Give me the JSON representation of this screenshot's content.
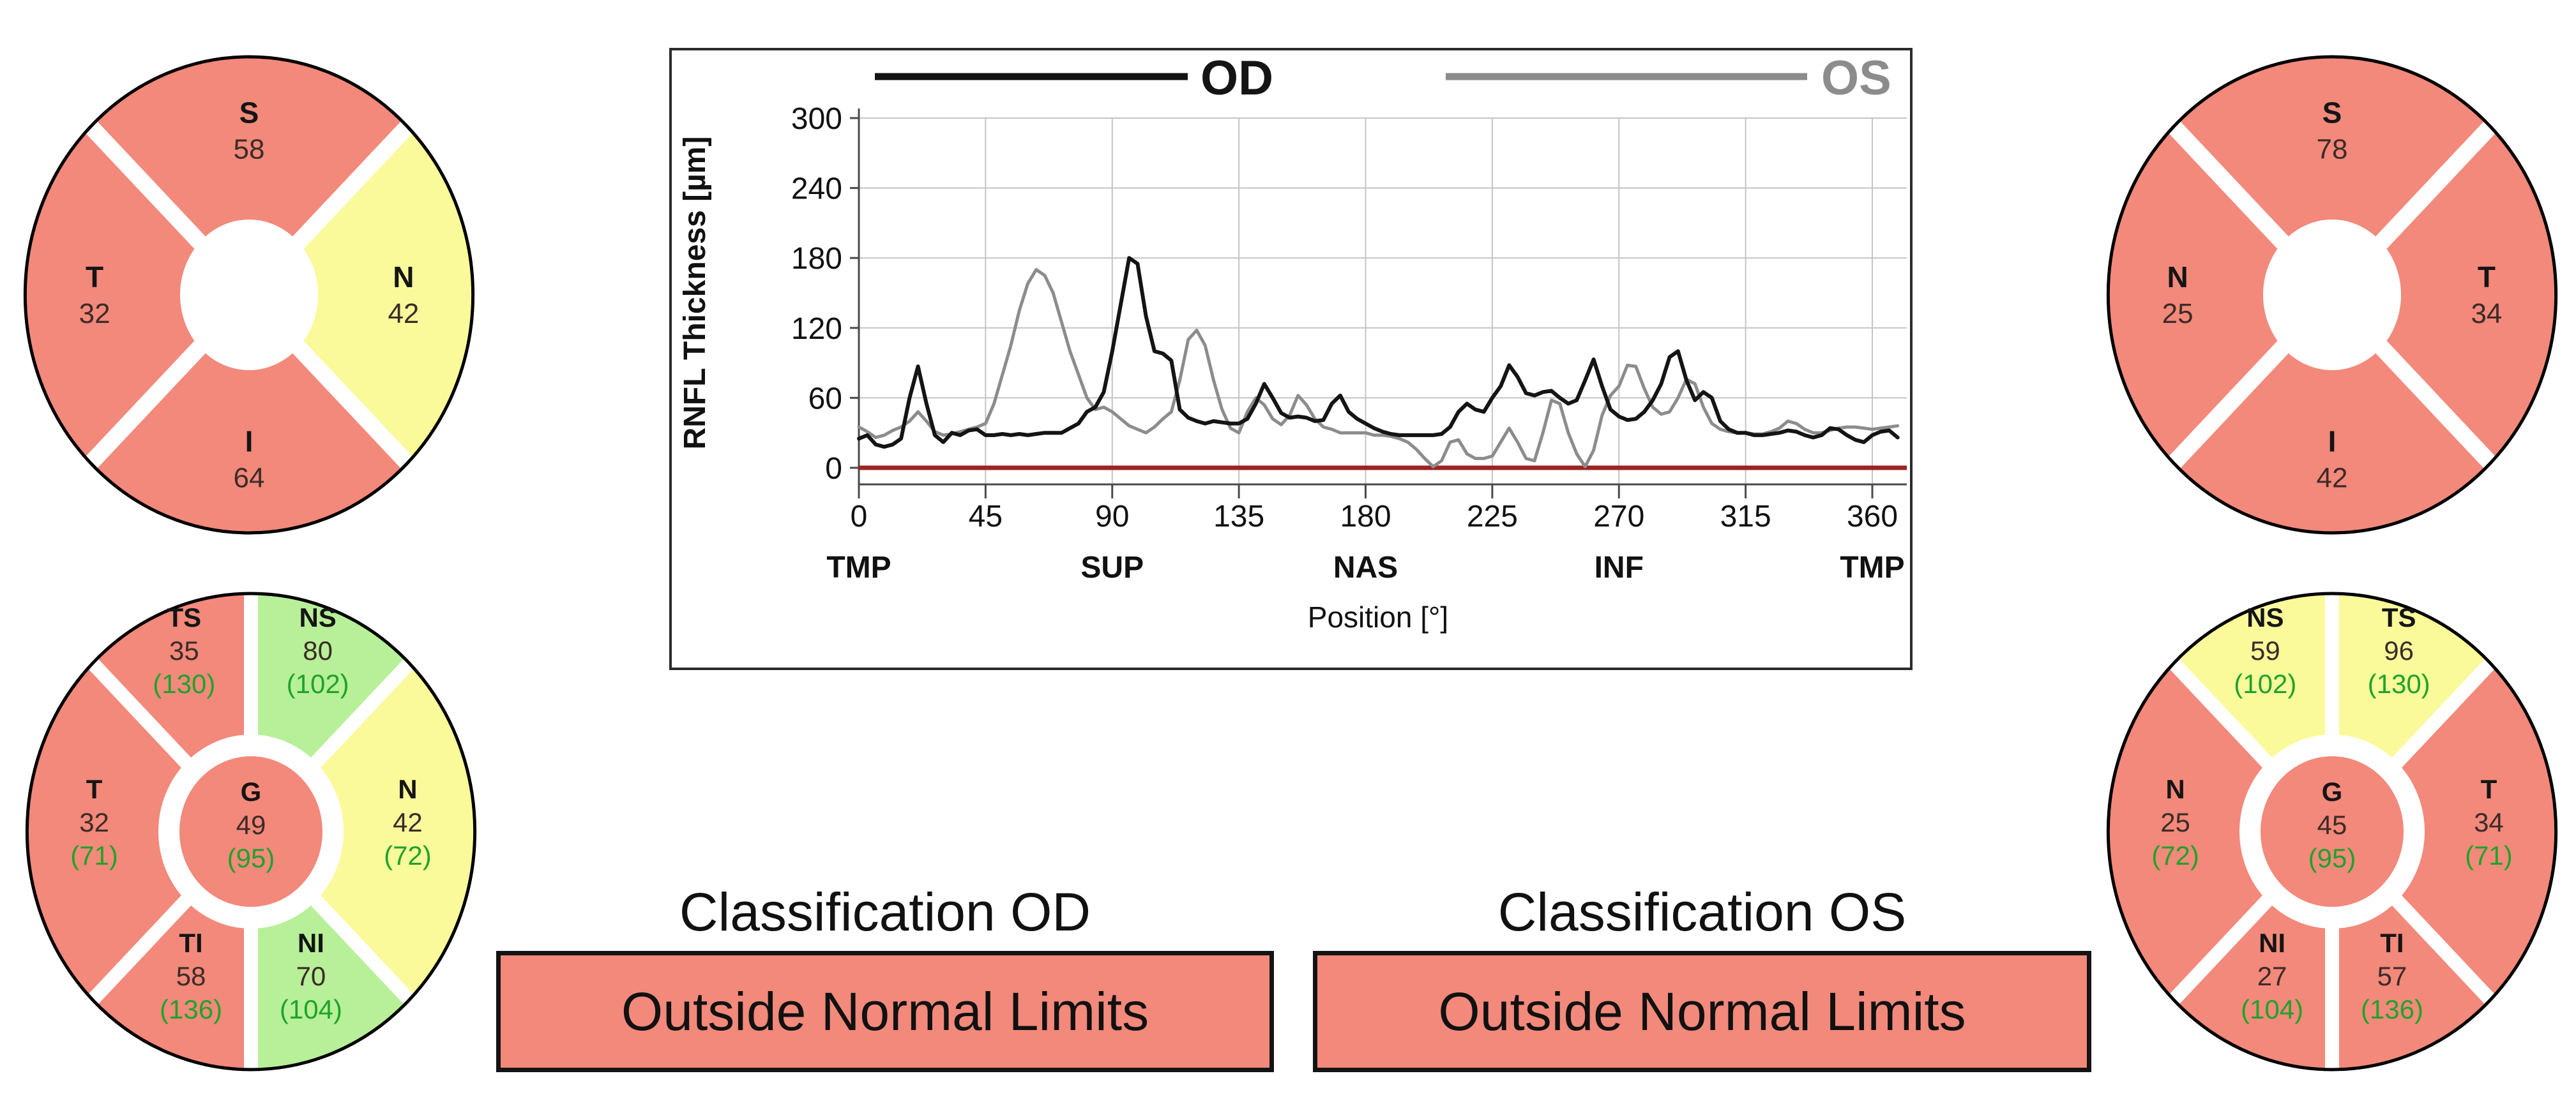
{
  "palette": {
    "red": "#F2897B",
    "yellow": "#FAFA9B",
    "green": "#B7F098",
    "green_text": "#1FA32A",
    "label_text": "#151515",
    "value_text": "#3D2B28",
    "outline": "#000000",
    "grid": "#C4C4C4",
    "axis": "#4A4A4A",
    "frame": "#2B2B2B",
    "zero_line": "#9B2423",
    "od_curve": "#141414",
    "os_curve": "#8C8C8C"
  },
  "classifications": [
    {
      "heading": "Classification OD",
      "result": "Outside Normal Limits",
      "status": "red"
    },
    {
      "heading": "Classification OS",
      "result": "Outside Normal Limits",
      "status": "red"
    }
  ],
  "chart_data": [
    {
      "id": "rnfl_profile",
      "type": "line",
      "title": "",
      "xlabel": "Position [°]",
      "ylabel": "RNFL Thickness [µm]",
      "xlim": [
        0,
        370
      ],
      "ylim": [
        0,
        300
      ],
      "grid": true,
      "x_ticks": [
        0,
        45,
        90,
        135,
        180,
        225,
        270,
        315,
        360
      ],
      "y_ticks": [
        0,
        60,
        120,
        180,
        240,
        300
      ],
      "region_labels": [
        {
          "label": "TMP",
          "deg": 0
        },
        {
          "label": "SUP",
          "deg": 90
        },
        {
          "label": "NAS",
          "deg": 180
        },
        {
          "label": "INF",
          "deg": 270
        },
        {
          "label": "TMP",
          "deg": 360
        }
      ],
      "legend": [
        {
          "name": "OD",
          "color": "#141414"
        },
        {
          "name": "OS",
          "color": "#8C8C8C"
        }
      ],
      "baseline": {
        "value": 0,
        "color": "#9B2423"
      },
      "x_start": 0,
      "x_step": 3,
      "series": [
        {
          "name": "OD",
          "values": [
            25,
            28,
            20,
            18,
            20,
            25,
            60,
            87,
            55,
            28,
            22,
            30,
            28,
            32,
            33,
            28,
            28,
            29,
            28,
            29,
            28,
            29,
            30,
            30,
            30,
            34,
            38,
            48,
            52,
            65,
            100,
            140,
            180,
            175,
            130,
            100,
            98,
            92,
            50,
            43,
            40,
            38,
            40,
            39,
            38,
            38,
            42,
            55,
            72,
            60,
            47,
            43,
            44,
            43,
            40,
            41,
            55,
            62,
            48,
            42,
            38,
            34,
            31,
            29,
            28,
            28,
            28,
            28,
            28,
            29,
            35,
            48,
            55,
            50,
            48,
            60,
            70,
            88,
            78,
            64,
            62,
            65,
            66,
            60,
            55,
            58,
            75,
            93,
            70,
            50,
            44,
            41,
            42,
            48,
            58,
            72,
            95,
            100,
            75,
            58,
            65,
            60,
            40,
            33,
            30,
            30,
            28,
            28,
            29,
            30,
            32,
            31,
            28,
            26,
            28,
            34,
            33,
            28,
            24,
            22,
            28,
            31,
            32,
            26
          ]
        },
        {
          "name": "OS",
          "values": [
            35,
            31,
            26,
            28,
            32,
            35,
            40,
            48,
            40,
            31,
            28,
            29,
            31,
            33,
            35,
            38,
            55,
            80,
            105,
            135,
            158,
            170,
            165,
            150,
            125,
            100,
            80,
            60,
            50,
            52,
            48,
            42,
            36,
            33,
            30,
            35,
            42,
            48,
            75,
            110,
            118,
            105,
            75,
            50,
            34,
            30,
            48,
            60,
            54,
            42,
            37,
            45,
            62,
            54,
            42,
            35,
            33,
            30,
            30,
            30,
            30,
            28,
            28,
            27,
            25,
            22,
            16,
            8,
            1,
            6,
            22,
            24,
            12,
            8,
            8,
            10,
            22,
            34,
            22,
            8,
            6,
            30,
            58,
            55,
            30,
            12,
            1,
            15,
            45,
            62,
            70,
            88,
            87,
            68,
            52,
            46,
            48,
            60,
            76,
            72,
            52,
            38,
            33,
            31,
            30,
            30,
            29,
            29,
            31,
            34,
            40,
            38,
            33,
            30,
            30,
            32,
            34,
            35,
            35,
            34,
            33,
            34,
            35,
            36
          ]
        }
      ]
    },
    {
      "id": "od_quadrants",
      "type": "pie",
      "variant": "quadrant",
      "eye": "OD",
      "cx": 390,
      "cy": 462,
      "sectors": [
        {
          "label": "S",
          "value": "58",
          "status": "red",
          "start": 45,
          "end": 135
        },
        {
          "label": "N",
          "value": "42",
          "status": "yellow",
          "start": -45,
          "end": 45
        },
        {
          "label": "I",
          "value": "64",
          "status": "red",
          "start": 225,
          "end": 315
        },
        {
          "label": "T",
          "value": "32",
          "status": "red",
          "start": 135,
          "end": 225
        }
      ]
    },
    {
      "id": "os_quadrants",
      "type": "pie",
      "variant": "quadrant",
      "eye": "OS",
      "cx": 3652,
      "cy": 462,
      "sectors": [
        {
          "label": "S",
          "value": "78",
          "status": "red",
          "start": 45,
          "end": 135
        },
        {
          "label": "T",
          "value": "34",
          "status": "red",
          "start": -45,
          "end": 45
        },
        {
          "label": "I",
          "value": "42",
          "status": "red",
          "start": 225,
          "end": 315
        },
        {
          "label": "N",
          "value": "25",
          "status": "red",
          "start": 135,
          "end": 225
        }
      ]
    },
    {
      "id": "od_sectors",
      "type": "pie",
      "variant": "garway-heath",
      "eye": "OD",
      "cx": 393,
      "cy": 1303,
      "center": {
        "label": "G",
        "value": "49",
        "norm": "(95)",
        "status": "red"
      },
      "sectors": [
        {
          "label": "TS",
          "value": "35",
          "norm": "(130)",
          "status": "red",
          "start": 90,
          "end": 135
        },
        {
          "label": "NS",
          "value": "80",
          "norm": "(102)",
          "status": "green",
          "start": 45,
          "end": 90
        },
        {
          "label": "N",
          "value": "42",
          "norm": "(72)",
          "status": "yellow",
          "start": -45,
          "end": 45
        },
        {
          "label": "NI",
          "value": "70",
          "norm": "(104)",
          "status": "green",
          "start": 270,
          "end": 315
        },
        {
          "label": "TI",
          "value": "58",
          "norm": "(136)",
          "status": "red",
          "start": 225,
          "end": 270
        },
        {
          "label": "T",
          "value": "32",
          "norm": "(71)",
          "status": "red",
          "start": 135,
          "end": 225
        }
      ]
    },
    {
      "id": "os_sectors",
      "type": "pie",
      "variant": "garway-heath",
      "eye": "OS",
      "cx": 3652,
      "cy": 1303,
      "center": {
        "label": "G",
        "value": "45",
        "norm": "(95)",
        "status": "red"
      },
      "sectors": [
        {
          "label": "NS",
          "value": "59",
          "norm": "(102)",
          "status": "yellow",
          "start": 90,
          "end": 135
        },
        {
          "label": "TS",
          "value": "96",
          "norm": "(130)",
          "status": "yellow",
          "start": 45,
          "end": 90
        },
        {
          "label": "T",
          "value": "34",
          "norm": "(71)",
          "status": "red",
          "start": -45,
          "end": 45
        },
        {
          "label": "TI",
          "value": "57",
          "norm": "(136)",
          "status": "red",
          "start": 270,
          "end": 315
        },
        {
          "label": "NI",
          "value": "27",
          "norm": "(104)",
          "status": "red",
          "start": 225,
          "end": 270
        },
        {
          "label": "N",
          "value": "25",
          "norm": "(72)",
          "status": "red",
          "start": 135,
          "end": 225
        }
      ]
    }
  ]
}
